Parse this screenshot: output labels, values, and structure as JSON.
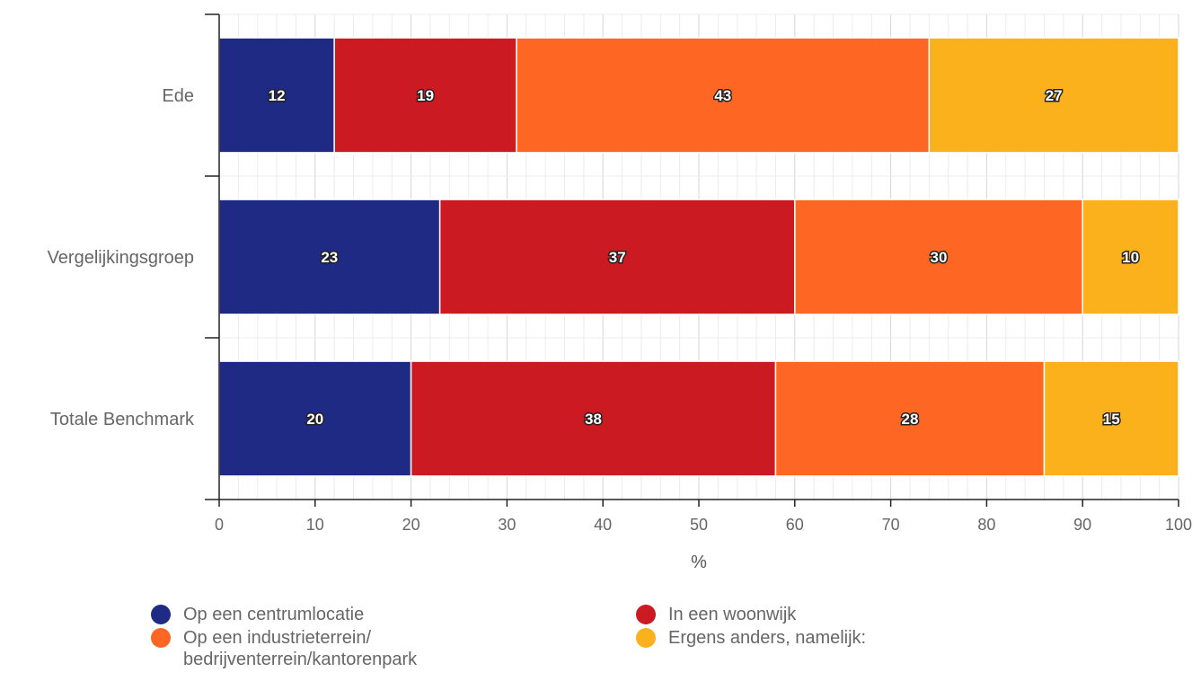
{
  "chart_data": {
    "type": "bar",
    "orientation": "horizontal",
    "stacked": true,
    "categories": [
      "Ede",
      "Vergelijkingsgroep",
      "Totale Benchmark"
    ],
    "series": [
      {
        "name": "Op een centrumlocatie",
        "values": [
          12,
          23,
          20
        ],
        "color": "#1f2a85"
      },
      {
        "name": "In een woonwijk",
        "values": [
          19,
          37,
          38
        ],
        "color": "#cc1a23"
      },
      {
        "name": "Op een industrieterrein/ bedrijventerrein/kantorenpark",
        "values": [
          43,
          30,
          28
        ],
        "color": "#fd6723"
      },
      {
        "name": "Ergens anders, namelijk:",
        "values": [
          27,
          10,
          15
        ],
        "color": "#fbb11c"
      }
    ],
    "xlabel": "%",
    "xlim": [
      0,
      100
    ],
    "xticks": [
      "0",
      "10",
      "20",
      "30",
      "40",
      "50",
      "60",
      "70",
      "80",
      "90",
      "100"
    ],
    "grid": true,
    "legend_placement": "bottom"
  }
}
